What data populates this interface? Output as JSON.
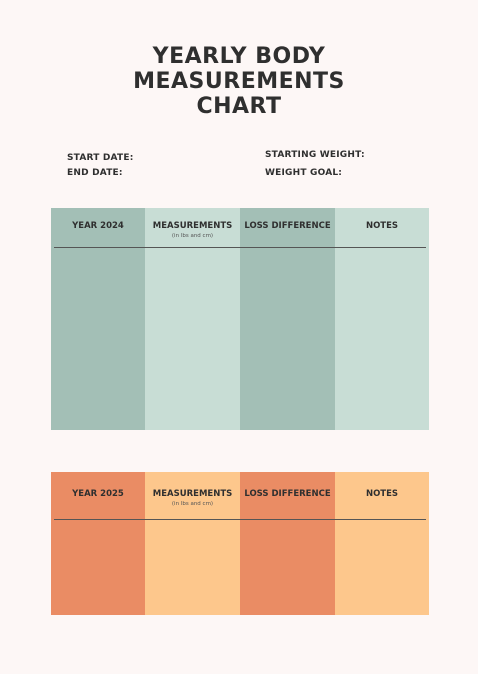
{
  "title": {
    "line1": "YEARLY BODY",
    "line2": "MEASUREMENTS",
    "line3": "CHART"
  },
  "fields": {
    "start_date": "START DATE:",
    "end_date": "END DATE:",
    "starting_weight": "STARTING WEIGHT:",
    "weight_goal": "WEIGHT GOAL:"
  },
  "table_2024": {
    "columns": [
      "YEAR 2024",
      "MEASUREMENTS",
      "LOSS DIFFERENCE",
      "NOTES"
    ],
    "measurements_note": "(in lbs and cm)",
    "colors": [
      "#a3bfb6",
      "#c8ddd5",
      "#a3bfb6",
      "#c8ddd5"
    ]
  },
  "table_2025": {
    "columns": [
      "YEAR 2025",
      "MEASUREMENTS",
      "LOSS DIFFERENCE",
      "NOTES"
    ],
    "measurements_note": "(in lbs and cm)",
    "colors": [
      "#ea8c64",
      "#fdc78c",
      "#ea8c64",
      "#fdc78c"
    ]
  }
}
